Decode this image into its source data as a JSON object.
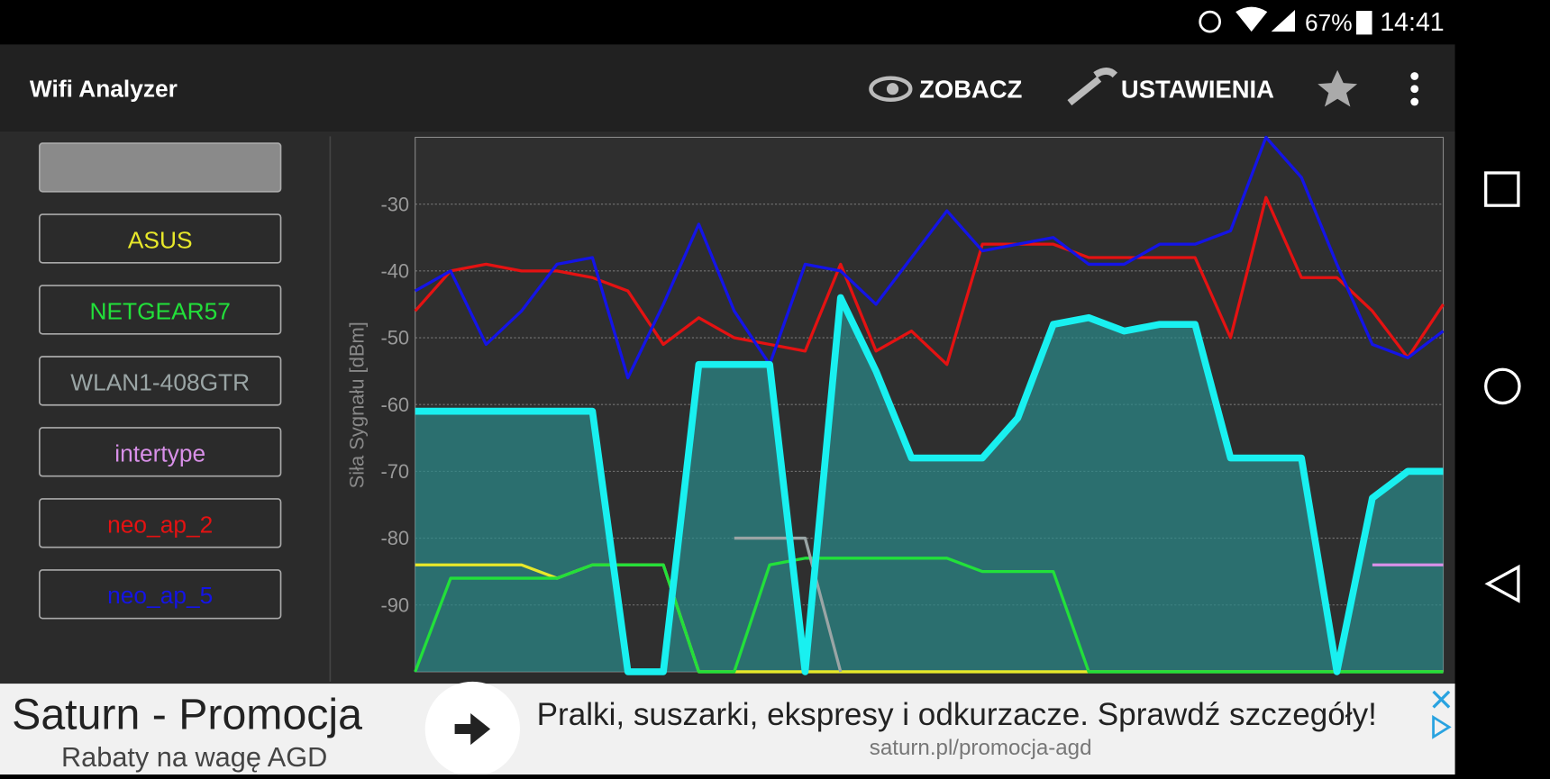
{
  "status_bar": {
    "battery": "67%",
    "time": "14:41"
  },
  "app_bar": {
    "title": "Wifi Analyzer",
    "actions": [
      "ZOBACZ",
      "USTAWIENIA"
    ]
  },
  "chart_data": {
    "type": "line",
    "y_label": "Siła Sygnału [dBm]",
    "x": [
      0,
      1,
      2,
      3,
      4,
      5,
      6,
      7,
      8,
      9,
      10,
      11,
      12,
      13,
      14,
      15,
      16,
      17,
      18,
      19,
      20,
      21,
      22,
      23,
      24,
      25,
      26,
      27,
      28,
      29
    ],
    "xlim": [
      0,
      29
    ],
    "ylim": [
      -100,
      -20
    ],
    "yticks": [
      -30,
      -40,
      -50,
      -60,
      -70,
      -80,
      -90
    ],
    "grid": true,
    "series": [
      {
        "color": "#19f0f0",
        "filled": true,
        "values": [
          -61,
          -61,
          -61,
          -61,
          -61,
          -61,
          -100,
          -100,
          -54,
          -54,
          -54,
          -100,
          -44,
          -55,
          -68,
          -68,
          -68,
          -62,
          -48,
          -47,
          -49,
          -48,
          -48,
          -68,
          -68,
          -68,
          -100,
          -74,
          -70,
          -70
        ]
      },
      {
        "name": "ASUS",
        "color": "#e8e82a",
        "values": [
          -84,
          -84,
          -84,
          -84,
          -86,
          -84,
          -84,
          -84,
          -100,
          -100,
          -100,
          -100,
          -100,
          -100,
          -100,
          -100,
          -100,
          -100,
          -100,
          -100,
          -100,
          -100,
          -100,
          -100,
          -100,
          -100,
          -100,
          -100,
          -100,
          -100
        ]
      },
      {
        "name": "NETGEAR57",
        "color": "#22e03a",
        "values": [
          -100,
          -86,
          -86,
          -86,
          -86,
          -84,
          -84,
          -84,
          -100,
          -100,
          -84,
          -83,
          -83,
          -83,
          -83,
          -83,
          -85,
          -85,
          -85,
          -100,
          -100,
          -100,
          -100,
          -100,
          -100,
          -100,
          -100,
          -100,
          -100,
          -100
        ]
      },
      {
        "name": "WLAN1-408GTR",
        "color": "#9aa5a5",
        "values": [
          null,
          null,
          null,
          null,
          null,
          null,
          null,
          null,
          null,
          -80,
          -80,
          -80,
          -100,
          null,
          null,
          null,
          null,
          null,
          null,
          null,
          null,
          null,
          null,
          null,
          null,
          null,
          null,
          null,
          null,
          null
        ]
      },
      {
        "name": "intertype",
        "color": "#d890e8",
        "values": [
          null,
          null,
          null,
          null,
          null,
          null,
          null,
          null,
          null,
          null,
          null,
          null,
          null,
          null,
          null,
          null,
          null,
          null,
          null,
          null,
          null,
          null,
          null,
          null,
          null,
          null,
          null,
          -84,
          -84,
          -84
        ]
      },
      {
        "name": "neo_ap_2",
        "color": "#e41212",
        "values": [
          -46,
          -40,
          -39,
          -40,
          -40,
          -41,
          -43,
          -51,
          -47,
          -50,
          -51,
          -52,
          -39,
          -52,
          -49,
          -54,
          -36,
          -36,
          -36,
          -38,
          -38,
          -38,
          -38,
          -50,
          -29,
          -41,
          -41,
          -46,
          -53,
          -45
        ]
      },
      {
        "name": "neo_ap_5",
        "color": "#1414e6",
        "values": [
          -43,
          -40,
          -51,
          -46,
          -39,
          -38,
          -56,
          -45,
          -33,
          -46,
          -54,
          -39,
          -40,
          -45,
          -38,
          -31,
          -37,
          -36,
          -35,
          -39,
          -39,
          -36,
          -36,
          -34,
          -20,
          -26,
          -39,
          -51,
          -53,
          -49
        ]
      }
    ]
  },
  "ad": {
    "title": "Saturn - Promocja",
    "subtitle": "Rabaty na wagę AGD",
    "text": "Pralki, suszarki, ekspresy i odkurzacze. Sprawdź szczegóły!",
    "url": "saturn.pl/promocja-agd"
  }
}
